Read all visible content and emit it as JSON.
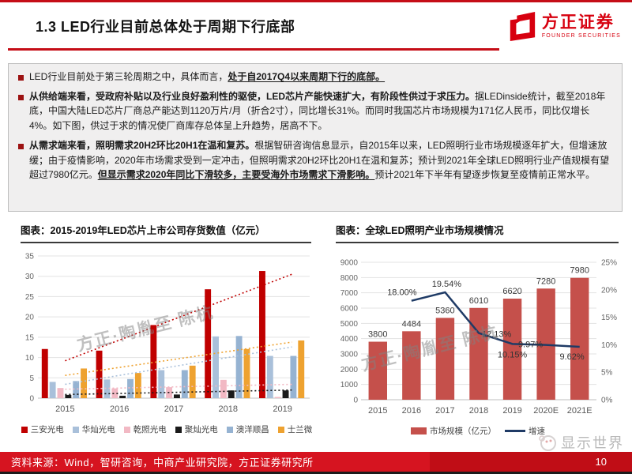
{
  "header": {
    "title": "1.3 LED行业目前总体处于周期下行底部",
    "logo": {
      "brand": "方正证券",
      "subtitle": "FOUNDER SECURITIES"
    }
  },
  "bullets": [
    {
      "segments": [
        {
          "t": "LED行业目前处于第三轮周期之中，具体而言，",
          "b": false,
          "u": false
        },
        {
          "t": "处于自2017Q4以来周期下行的底部。",
          "b": true,
          "u": true
        }
      ]
    },
    {
      "segments": [
        {
          "t": "从供给端来看，受政府补贴以及行业良好盈利性的驱使，LED芯片产能快速扩大，有阶段性供过于求压力。",
          "b": true,
          "u": false
        },
        {
          "t": "据LEDinside统计，截至2018年底，中国大陆LED芯片厂商总产能达到1120万片/月（折合2寸），同比增长31%。而同时我国芯片市场规模为171亿人民币，同比仅增长4%。如下图，供过于求的情况使厂商库存总体呈上升趋势，居高不下。",
          "b": false,
          "u": false
        }
      ]
    },
    {
      "segments": [
        {
          "t": "从需求端来看，照明需求20H2环比20H1在温和复苏。",
          "b": true,
          "u": false
        },
        {
          "t": "根据智研咨询信息显示，自2015年以来，LED照明行业市场规模逐年扩大，但增速放缓；由于疫情影响，2020年市场需求受到一定冲击，但照明需求20H2环比20H1在温和复苏；预计到2021年全球LED照明行业产值规模有望超过7980亿元。",
          "b": false,
          "u": false
        },
        {
          "t": "但显示需求2020年同比下滑较多，主要受海外市场需求下滑影响。",
          "b": true,
          "u": true
        },
        {
          "t": "预计2021年下半年有望逐步恢复至疫情前正常水平。",
          "b": false,
          "u": false
        }
      ]
    }
  ],
  "figures": {
    "left": {
      "title": "图表：2015-2019年LED芯片上市公司存货数值（亿元）"
    },
    "right": {
      "title": "图表：全球LED照明产业市场规模情况"
    }
  },
  "chart_data": [
    {
      "type": "bar",
      "title": "2015-2019年LED芯片上市公司存货数值（亿元）",
      "categories": [
        "2015",
        "2016",
        "2017",
        "2018",
        "2019"
      ],
      "series": [
        {
          "name": "三安光电",
          "color": "#c00000",
          "values": [
            12.1,
            11.7,
            18.0,
            26.8,
            31.3
          ]
        },
        {
          "name": "华灿光电",
          "color": "#a9c0da",
          "values": [
            4.0,
            4.6,
            6.9,
            15.2,
            10.4
          ]
        },
        {
          "name": "乾照光电",
          "color": "#f2b9c4",
          "values": [
            2.5,
            2.4,
            2.7,
            4.5,
            0.3
          ]
        },
        {
          "name": "聚灿光电",
          "color": "#1a1a1a",
          "values": [
            0.8,
            0.6,
            0.9,
            1.9,
            1.9
          ]
        },
        {
          "name": "澳洋顺昌",
          "color": "#96b3d2",
          "values": [
            4.2,
            4.7,
            6.9,
            15.3,
            10.4
          ]
        },
        {
          "name": "士兰微",
          "color": "#eea230",
          "values": [
            7.3,
            6.2,
            8.0,
            12.1,
            14.2
          ]
        }
      ],
      "ylim": [
        0,
        35
      ],
      "ytick_step": 5,
      "grid": true,
      "legend_position": "bottom",
      "trendlines": [
        {
          "series": "三安光电",
          "color": "#c00000",
          "from": 9.2,
          "to": 30.5
        },
        {
          "series": "士兰微",
          "color": "#eea230",
          "from": 5.6,
          "to": 13.8
        },
        {
          "series": "华灿光电",
          "color": "#a9c0da",
          "from": 3.4,
          "to": 12.6
        },
        {
          "series": "乾照光电",
          "color": "#f2b9c4",
          "from": 2.2,
          "to": 3.4
        },
        {
          "series": "聚灿光电",
          "color": "#1a1a1a",
          "from": 0.9,
          "to": 2.0
        }
      ]
    },
    {
      "type": "bar",
      "title": "全球LED照明产业市场规模情况",
      "categories": [
        "2015",
        "2016",
        "2017",
        "2018",
        "2019",
        "2020E",
        "2021E"
      ],
      "series": [
        {
          "name": "市场规模（亿元）",
          "kind": "bar",
          "color": "#c5504b",
          "values": [
            3800,
            4484,
            5360,
            6010,
            6620,
            7280,
            7980
          ]
        },
        {
          "name": "增速",
          "kind": "line",
          "color": "#1f3b66",
          "values": [
            null,
            18.0,
            19.54,
            12.13,
            10.15,
            9.97,
            9.62
          ],
          "labels": [
            "",
            "18.00%",
            "19.54%",
            "12.13%",
            "10.15%",
            "9.97%",
            "9.62%"
          ]
        }
      ],
      "left_ylim": [
        0,
        9000
      ],
      "left_ytick_step": 1000,
      "right_ylim": [
        0,
        25
      ],
      "right_ytick_step": 5,
      "grid": true,
      "legend_position": "bottom"
    }
  ],
  "watermark": "方正·陶胤至 陈杭",
  "brand_badge": {
    "label": "显示世界"
  },
  "footer": {
    "source": "资料来源：Wind，智研咨询，中商产业研究院，方正证券研究所",
    "page": "10"
  }
}
